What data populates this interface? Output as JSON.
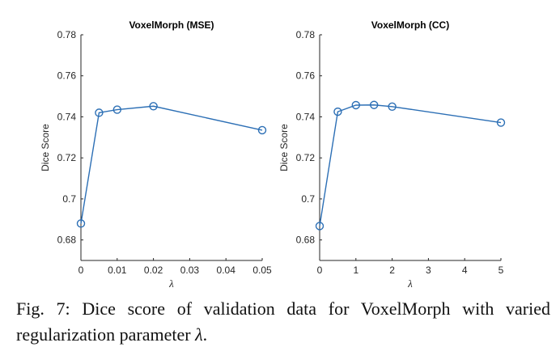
{
  "chart_data": [
    {
      "type": "line",
      "title": "VoxelMorph (MSE)",
      "xlabel": "λ",
      "ylabel": "Dice Score",
      "x": [
        0,
        0.005,
        0.01,
        0.02,
        0.05
      ],
      "y": [
        0.688,
        0.742,
        0.7435,
        0.7452,
        0.7335
      ],
      "xlim": [
        0,
        0.05
      ],
      "ylim": [
        0.67,
        0.78
      ],
      "xticks": [
        0,
        0.01,
        0.02,
        0.03,
        0.04,
        0.05
      ],
      "xtick_labels": [
        "0",
        "0.01",
        "0.02",
        "0.03",
        "0.04",
        "0.05"
      ],
      "yticks": [
        0.68,
        0.7,
        0.72,
        0.74,
        0.76,
        0.78
      ],
      "ytick_labels": [
        "0.68",
        "0.7",
        "0.72",
        "0.74",
        "0.76",
        "0.78"
      ],
      "marker": "circle",
      "color": "#2c6fb5",
      "grid": false
    },
    {
      "type": "line",
      "title": "VoxelMorph (CC)",
      "xlabel": "λ",
      "ylabel": "Dice Score",
      "x": [
        0,
        0.5,
        1,
        1.5,
        2,
        5
      ],
      "y": [
        0.6868,
        0.7425,
        0.7457,
        0.7458,
        0.745,
        0.7372
      ],
      "xlim": [
        0,
        5
      ],
      "ylim": [
        0.67,
        0.78
      ],
      "xticks": [
        0,
        1,
        2,
        3,
        4,
        5
      ],
      "xtick_labels": [
        "0",
        "1",
        "2",
        "3",
        "4",
        "5"
      ],
      "yticks": [
        0.68,
        0.7,
        0.72,
        0.74,
        0.76,
        0.78
      ],
      "ytick_labels": [
        "0.68",
        "0.7",
        "0.72",
        "0.74",
        "0.76",
        "0.78"
      ],
      "marker": "circle",
      "color": "#2c6fb5",
      "grid": false
    }
  ],
  "caption": {
    "label": "Fig. 7:",
    "text": "Dice score of validation data for VoxelMorph with varied regularization parameter",
    "symbol": "λ",
    "end": "."
  }
}
